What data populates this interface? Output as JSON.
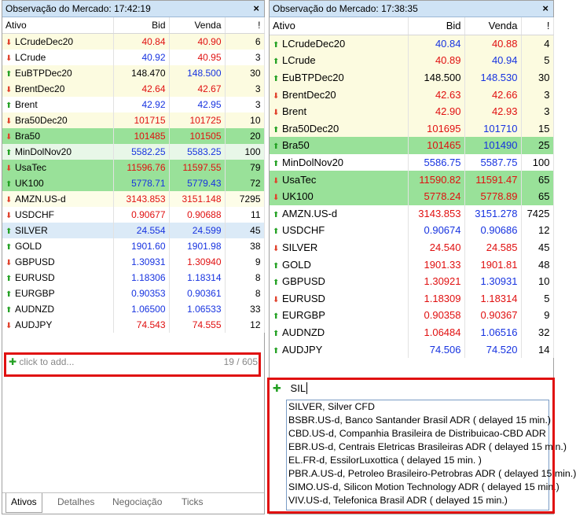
{
  "left": {
    "title": "Observação do Mercado: 17:42:19",
    "close": "×",
    "columns": [
      "Ativo",
      "Bid",
      "Venda",
      "!"
    ],
    "rows": [
      {
        "symbol": "LCrudeDec20",
        "bid": "40.84",
        "ask": "40.90",
        "spread": "6",
        "dir": "down",
        "bg": "#fcfbe0",
        "bc": "red",
        "ac": "red"
      },
      {
        "symbol": "LCrude",
        "bid": "40.92",
        "ask": "40.95",
        "spread": "3",
        "dir": "down",
        "bg": "#ffffff",
        "bc": "blue",
        "ac": "red"
      },
      {
        "symbol": "EuBTPDec20",
        "bid": "148.470",
        "ask": "148.500",
        "spread": "30",
        "dir": "up",
        "bg": "#fcfbe0",
        "bc": "black",
        "ac": "blue"
      },
      {
        "symbol": "BrentDec20",
        "bid": "42.64",
        "ask": "42.67",
        "spread": "3",
        "dir": "down",
        "bg": "#fcfbe0",
        "bc": "red",
        "ac": "red"
      },
      {
        "symbol": "Brent",
        "bid": "42.92",
        "ask": "42.95",
        "spread": "3",
        "dir": "up",
        "bg": "#ffffff",
        "bc": "blue",
        "ac": "blue"
      },
      {
        "symbol": "Bra50Dec20",
        "bid": "101715",
        "ask": "101725",
        "spread": "10",
        "dir": "down",
        "bg": "#fcfbe0",
        "bc": "red",
        "ac": "red"
      },
      {
        "symbol": "Bra50",
        "bid": "101485",
        "ask": "101505",
        "spread": "20",
        "dir": "down",
        "bg": "#99e199",
        "bc": "red",
        "ac": "red"
      },
      {
        "symbol": "MinDolNov20",
        "bid": "5582.25",
        "ask": "5583.25",
        "spread": "100",
        "dir": "up",
        "bg": "#e8f7e8",
        "bc": "blue",
        "ac": "blue"
      },
      {
        "symbol": "UsaTec",
        "bid": "11596.76",
        "ask": "11597.55",
        "spread": "79",
        "dir": "down",
        "bg": "#99e199",
        "bc": "red",
        "ac": "red"
      },
      {
        "symbol": "UK100",
        "bid": "5778.71",
        "ask": "5779.43",
        "spread": "72",
        "dir": "up",
        "bg": "#99e199",
        "bc": "blue",
        "ac": "blue"
      },
      {
        "symbol": "AMZN.US-d",
        "bid": "3143.853",
        "ask": "3151.148",
        "spread": "7295",
        "dir": "down",
        "bg": "#fdfde8",
        "bc": "red",
        "ac": "red"
      },
      {
        "symbol": "USDCHF",
        "bid": "0.90677",
        "ask": "0.90688",
        "spread": "11",
        "dir": "down",
        "bg": "#ffffff",
        "bc": "red",
        "ac": "red"
      },
      {
        "symbol": "SILVER",
        "bid": "24.554",
        "ask": "24.599",
        "spread": "45",
        "dir": "up",
        "bg": "#dbeaf7",
        "bc": "blue",
        "ac": "blue"
      },
      {
        "symbol": "GOLD",
        "bid": "1901.60",
        "ask": "1901.98",
        "spread": "38",
        "dir": "up",
        "bg": "#ffffff",
        "bc": "blue",
        "ac": "blue"
      },
      {
        "symbol": "GBPUSD",
        "bid": "1.30931",
        "ask": "1.30940",
        "spread": "9",
        "dir": "down",
        "bg": "#ffffff",
        "bc": "blue",
        "ac": "red"
      },
      {
        "symbol": "EURUSD",
        "bid": "1.18306",
        "ask": "1.18314",
        "spread": "8",
        "dir": "up",
        "bg": "#ffffff",
        "bc": "blue",
        "ac": "blue"
      },
      {
        "symbol": "EURGBP",
        "bid": "0.90353",
        "ask": "0.90361",
        "spread": "8",
        "dir": "up",
        "bg": "#ffffff",
        "bc": "blue",
        "ac": "blue"
      },
      {
        "symbol": "AUDNZD",
        "bid": "1.06500",
        "ask": "1.06533",
        "spread": "33",
        "dir": "up",
        "bg": "#ffffff",
        "bc": "blue",
        "ac": "blue"
      },
      {
        "symbol": "AUDJPY",
        "bid": "74.543",
        "ask": "74.555",
        "spread": "12",
        "dir": "down",
        "bg": "#ffffff",
        "bc": "red",
        "ac": "red"
      }
    ],
    "add_placeholder": "click to add...",
    "count": "19 / 605",
    "tabs": [
      "Ativos",
      "Detalhes",
      "Negociação",
      "Ticks"
    ]
  },
  "right": {
    "title": "Observação do Mercado: 17:38:35",
    "close": "×",
    "columns": [
      "Ativo",
      "Bid",
      "Venda",
      "!"
    ],
    "rows": [
      {
        "symbol": "LCrudeDec20",
        "bid": "40.84",
        "ask": "40.88",
        "spread": "4",
        "dir": "up",
        "bg": "#fcfbe0",
        "bc": "blue",
        "ac": "red"
      },
      {
        "symbol": "LCrude",
        "bid": "40.89",
        "ask": "40.94",
        "spread": "5",
        "dir": "up",
        "bg": "#fcfbe0",
        "bc": "red",
        "ac": "blue"
      },
      {
        "symbol": "EuBTPDec20",
        "bid": "148.500",
        "ask": "148.530",
        "spread": "30",
        "dir": "up",
        "bg": "#fcfbe0",
        "bc": "black",
        "ac": "blue"
      },
      {
        "symbol": "BrentDec20",
        "bid": "42.63",
        "ask": "42.66",
        "spread": "3",
        "dir": "down",
        "bg": "#fcfbe0",
        "bc": "red",
        "ac": "red"
      },
      {
        "symbol": "Brent",
        "bid": "42.90",
        "ask": "42.93",
        "spread": "3",
        "dir": "down",
        "bg": "#fcfbe0",
        "bc": "red",
        "ac": "red"
      },
      {
        "symbol": "Bra50Dec20",
        "bid": "101695",
        "ask": "101710",
        "spread": "15",
        "dir": "up",
        "bg": "#fcfbe0",
        "bc": "red",
        "ac": "blue"
      },
      {
        "symbol": "Bra50",
        "bid": "101465",
        "ask": "101490",
        "spread": "25",
        "dir": "up",
        "bg": "#99e199",
        "bc": "red",
        "ac": "blue"
      },
      {
        "symbol": "MinDolNov20",
        "bid": "5586.75",
        "ask": "5587.75",
        "spread": "100",
        "dir": "up",
        "bg": "#ffffff",
        "bc": "blue",
        "ac": "blue"
      },
      {
        "symbol": "UsaTec",
        "bid": "11590.82",
        "ask": "11591.47",
        "spread": "65",
        "dir": "down",
        "bg": "#99e199",
        "bc": "red",
        "ac": "red"
      },
      {
        "symbol": "UK100",
        "bid": "5778.24",
        "ask": "5778.89",
        "spread": "65",
        "dir": "down",
        "bg": "#99e199",
        "bc": "red",
        "ac": "red"
      },
      {
        "symbol": "AMZN.US-d",
        "bid": "3143.853",
        "ask": "3151.278",
        "spread": "7425",
        "dir": "up",
        "bg": "#ffffff",
        "bc": "red",
        "ac": "blue"
      },
      {
        "symbol": "USDCHF",
        "bid": "0.90674",
        "ask": "0.90686",
        "spread": "12",
        "dir": "up",
        "bg": "#ffffff",
        "bc": "blue",
        "ac": "blue"
      },
      {
        "symbol": "SILVER",
        "bid": "24.540",
        "ask": "24.585",
        "spread": "45",
        "dir": "down",
        "bg": "#ffffff",
        "bc": "red",
        "ac": "red"
      },
      {
        "symbol": "GOLD",
        "bid": "1901.33",
        "ask": "1901.81",
        "spread": "48",
        "dir": "up",
        "bg": "#ffffff",
        "bc": "red",
        "ac": "red"
      },
      {
        "symbol": "GBPUSD",
        "bid": "1.30921",
        "ask": "1.30931",
        "spread": "10",
        "dir": "up",
        "bg": "#ffffff",
        "bc": "red",
        "ac": "blue"
      },
      {
        "symbol": "EURUSD",
        "bid": "1.18309",
        "ask": "1.18314",
        "spread": "5",
        "dir": "down",
        "bg": "#ffffff",
        "bc": "red",
        "ac": "red"
      },
      {
        "symbol": "EURGBP",
        "bid": "0.90358",
        "ask": "0.90367",
        "spread": "9",
        "dir": "up",
        "bg": "#ffffff",
        "bc": "red",
        "ac": "red"
      },
      {
        "symbol": "AUDNZD",
        "bid": "1.06484",
        "ask": "1.06516",
        "spread": "32",
        "dir": "up",
        "bg": "#ffffff",
        "bc": "red",
        "ac": "blue"
      },
      {
        "symbol": "AUDJPY",
        "bid": "74.506",
        "ask": "74.520",
        "spread": "14",
        "dir": "up",
        "bg": "#ffffff",
        "bc": "blue",
        "ac": "blue"
      }
    ],
    "search_value": "SIL",
    "suggestions": [
      "SILVER, Silver CFD",
      "BSBR.US-d, Banco Santander Brasil ADR ( delayed 15 min.)",
      "CBD.US-d, Companhia Brasileira de Distribuicao-CBD ADR",
      "EBR.US-d, Centrais Eletricas Brasileiras ADR ( delayed 15 min.)",
      "EL.FR-d, EssilorLuxottica ( delayed 15 min. )",
      "PBR.A.US-d, Petroleo Brasileiro-Petrobras ADR ( delayed 15 min.)",
      "SIMO.US-d, Silicon Motion Technology ADR ( delayed 15 min.)",
      "VIV.US-d, Telefonica Brasil ADR ( delayed 15 min.)"
    ]
  },
  "colors": {
    "up": "#22a022",
    "down": "#e0402a",
    "blue": "#1733e0",
    "red": "#e01010",
    "highlight": "#e01010"
  },
  "icons": {
    "up": "arrow-up-icon",
    "down": "arrow-down-icon",
    "add": "plus-icon"
  }
}
